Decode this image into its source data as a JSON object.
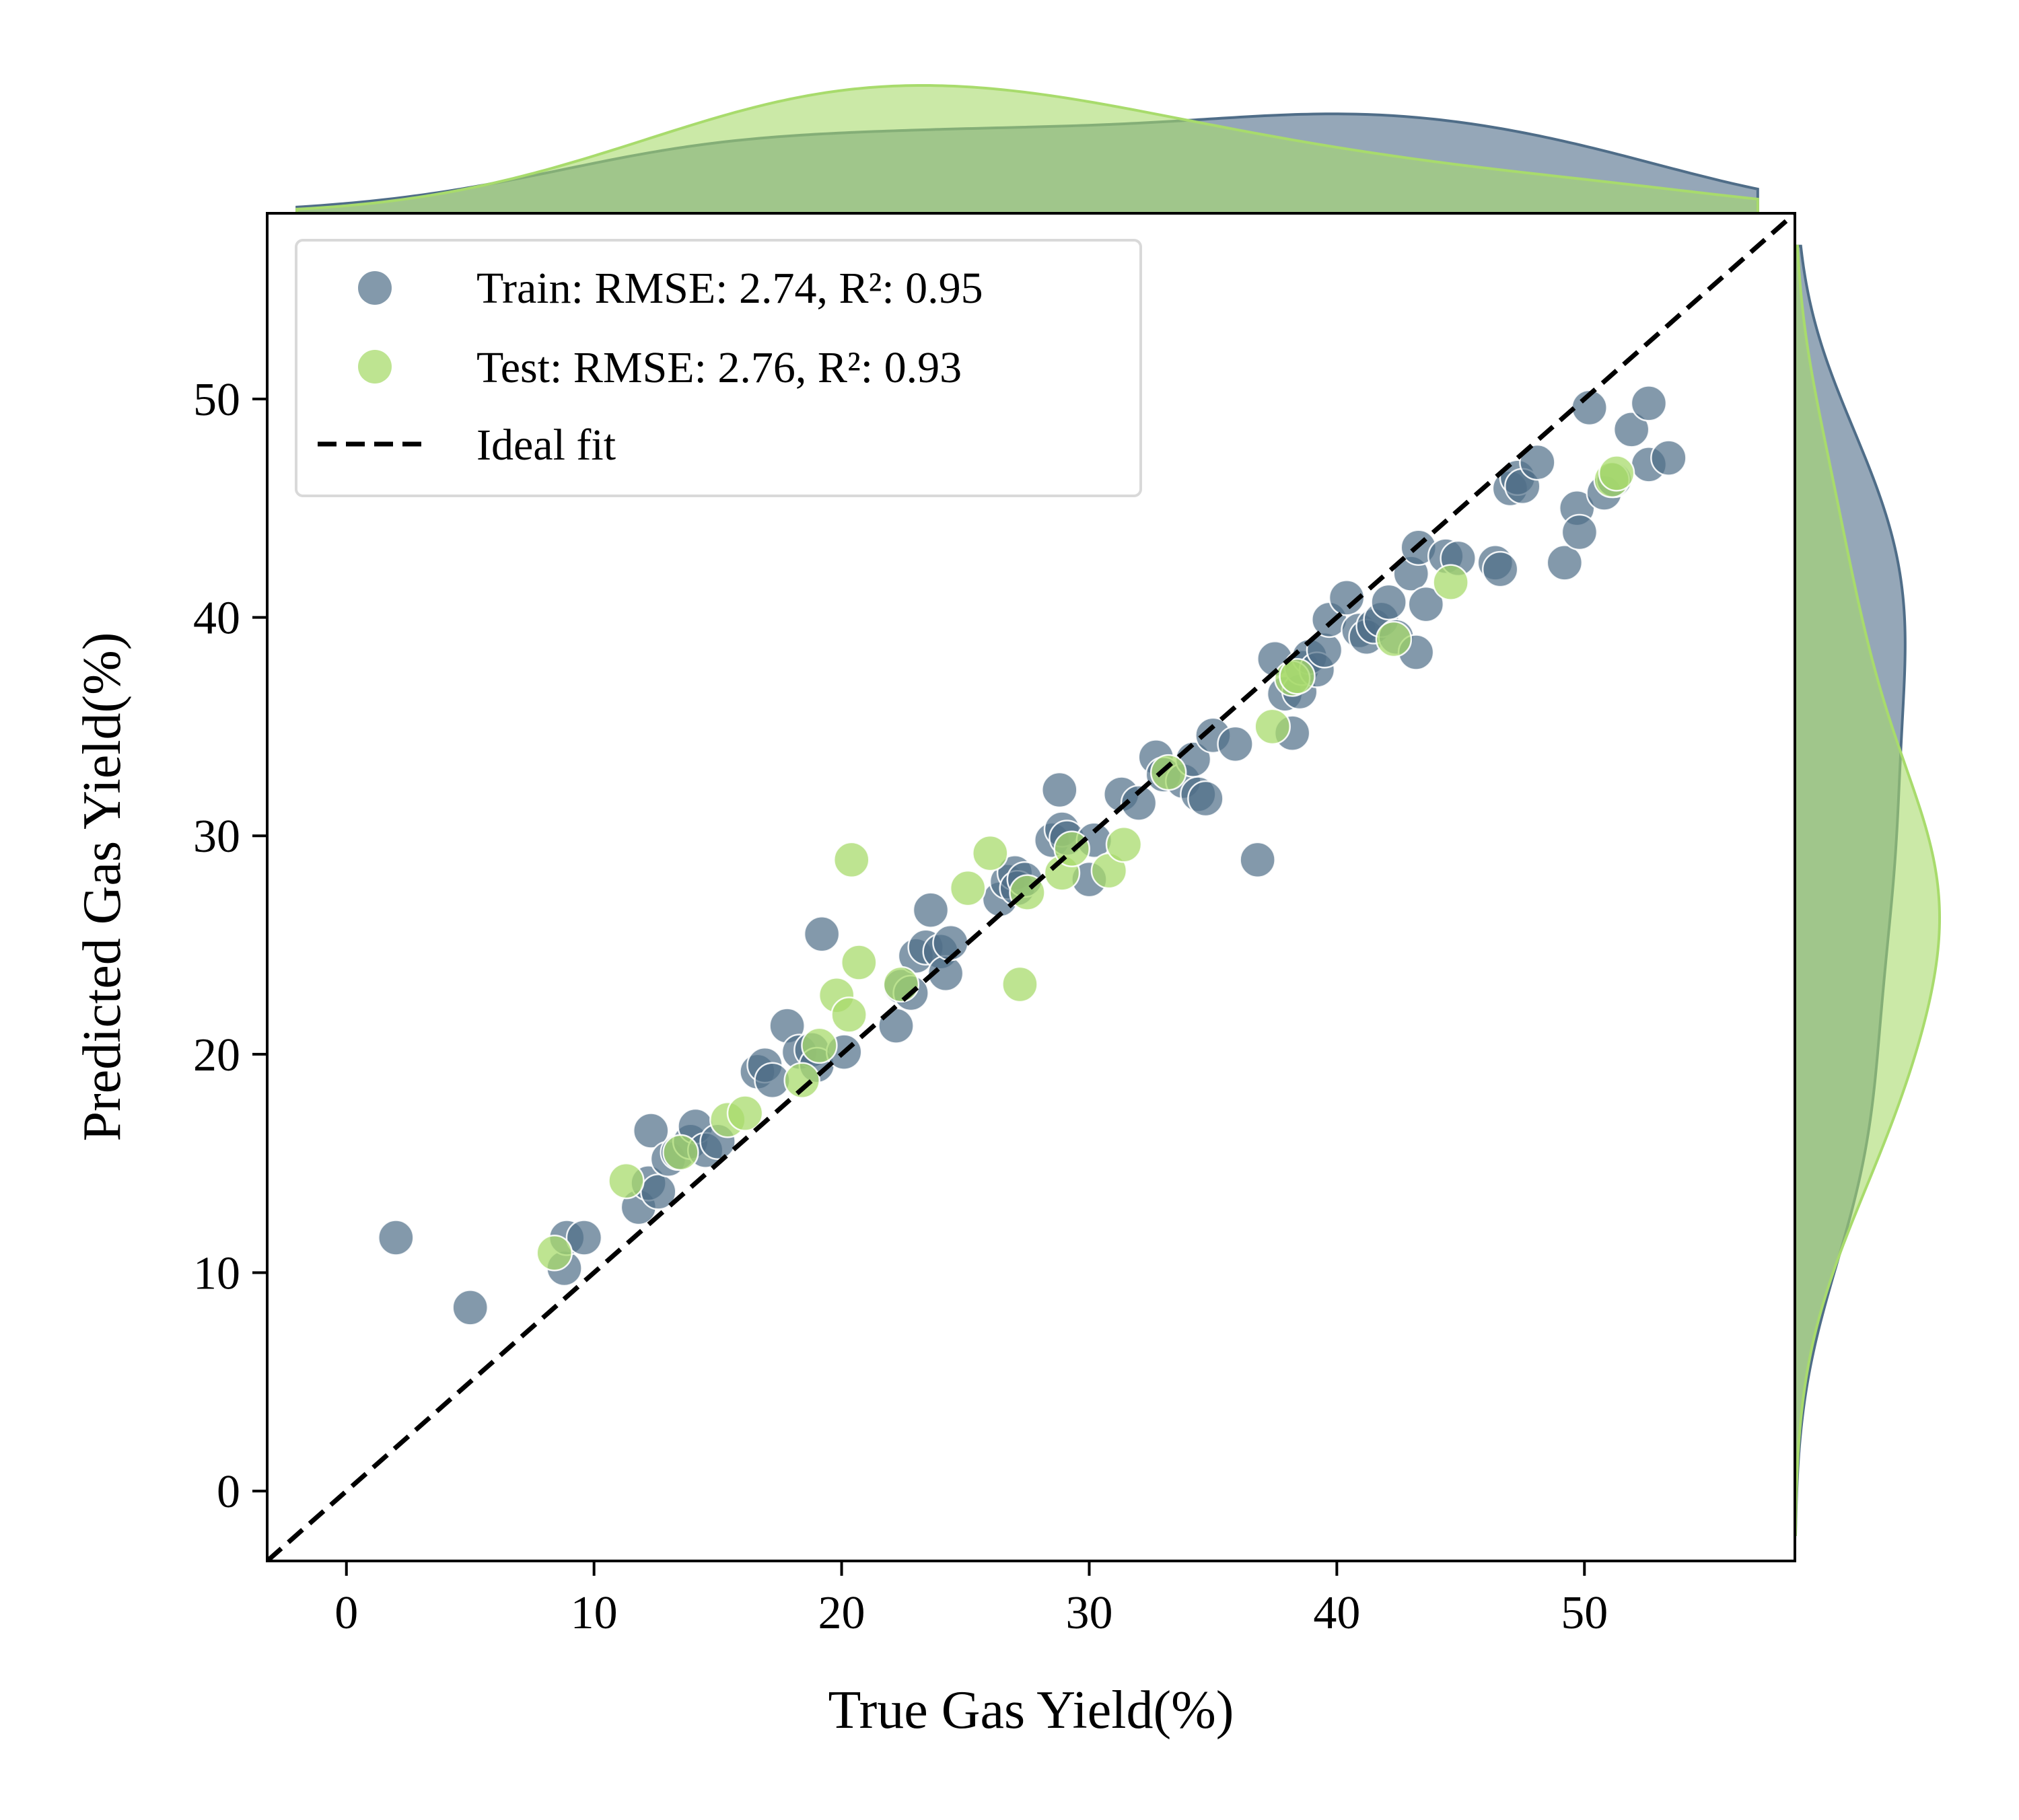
{
  "chart_data": {
    "type": "scatter",
    "title": "",
    "xlabel": "True Gas Yield(%)",
    "ylabel": "Predicted Gas Yield(%)",
    "xlim": [
      -3.2,
      58.5
    ],
    "ylim": [
      -3.2,
      58.5
    ],
    "xticks": [
      0,
      10,
      20,
      30,
      40,
      50
    ],
    "yticks": [
      0,
      10,
      20,
      30,
      40,
      50
    ],
    "grid": false,
    "legend_position": "top-left",
    "marginal_distributions": "kde",
    "series": [
      {
        "name": "Train: RMSE: 2.74, R²: 0.95",
        "color": "#4f6d88",
        "points": [
          [
            2.0,
            11.6
          ],
          [
            5.0,
            8.4
          ],
          [
            8.8,
            10.2
          ],
          [
            8.9,
            11.6
          ],
          [
            9.6,
            11.6
          ],
          [
            11.8,
            13.0
          ],
          [
            12.2,
            14.1
          ],
          [
            12.3,
            16.5
          ],
          [
            12.6,
            13.7
          ],
          [
            13.0,
            15.2
          ],
          [
            13.4,
            15.5
          ],
          [
            13.9,
            16.0
          ],
          [
            14.1,
            16.7
          ],
          [
            14.5,
            15.6
          ],
          [
            15.0,
            16.0
          ],
          [
            16.6,
            19.2
          ],
          [
            16.9,
            19.5
          ],
          [
            17.2,
            18.8
          ],
          [
            17.8,
            21.3
          ],
          [
            18.3,
            20.1
          ],
          [
            18.8,
            20.2
          ],
          [
            19.0,
            19.5
          ],
          [
            19.2,
            25.5
          ],
          [
            20.1,
            20.1
          ],
          [
            22.2,
            21.3
          ],
          [
            22.4,
            23.1
          ],
          [
            22.8,
            22.8
          ],
          [
            23.0,
            24.5
          ],
          [
            23.4,
            24.9
          ],
          [
            23.6,
            26.6
          ],
          [
            24.0,
            24.7
          ],
          [
            24.2,
            23.7
          ],
          [
            24.4,
            25.1
          ],
          [
            26.4,
            27.1
          ],
          [
            26.7,
            27.9
          ],
          [
            27.0,
            28.3
          ],
          [
            27.1,
            27.6
          ],
          [
            27.4,
            28.0
          ],
          [
            28.5,
            29.8
          ],
          [
            28.8,
            32.1
          ],
          [
            28.9,
            30.3
          ],
          [
            29.1,
            29.9
          ],
          [
            30.0,
            28.0
          ],
          [
            30.2,
            29.8
          ],
          [
            31.3,
            31.9
          ],
          [
            32.0,
            31.5
          ],
          [
            32.7,
            33.6
          ],
          [
            33.0,
            32.8
          ],
          [
            33.8,
            32.5
          ],
          [
            34.2,
            33.5
          ],
          [
            34.4,
            31.9
          ],
          [
            34.7,
            31.7
          ],
          [
            35.0,
            34.6
          ],
          [
            35.9,
            34.2
          ],
          [
            36.8,
            28.9
          ],
          [
            37.5,
            38.1
          ],
          [
            37.9,
            36.5
          ],
          [
            38.2,
            34.7
          ],
          [
            38.5,
            36.6
          ],
          [
            38.6,
            37.7
          ],
          [
            38.9,
            38.2
          ],
          [
            39.2,
            37.6
          ],
          [
            39.5,
            38.5
          ],
          [
            39.7,
            39.9
          ],
          [
            40.4,
            40.9
          ],
          [
            40.9,
            39.4
          ],
          [
            41.2,
            39.1
          ],
          [
            41.5,
            39.6
          ],
          [
            41.8,
            39.9
          ],
          [
            42.1,
            40.7
          ],
          [
            42.4,
            39.1
          ],
          [
            43.0,
            42.0
          ],
          [
            43.2,
            38.4
          ],
          [
            43.3,
            43.2
          ],
          [
            43.6,
            40.6
          ],
          [
            44.4,
            42.8
          ],
          [
            44.9,
            42.7
          ],
          [
            46.4,
            42.5
          ],
          [
            46.6,
            42.2
          ],
          [
            47.0,
            45.9
          ],
          [
            47.3,
            46.4
          ],
          [
            47.5,
            46.0
          ],
          [
            48.1,
            47.1
          ],
          [
            49.2,
            42.5
          ],
          [
            49.7,
            45.0
          ],
          [
            49.8,
            43.9
          ],
          [
            50.2,
            49.6
          ],
          [
            50.8,
            45.7
          ],
          [
            51.2,
            46.3
          ],
          [
            51.9,
            48.6
          ],
          [
            52.6,
            49.8
          ],
          [
            52.6,
            47.0
          ],
          [
            53.4,
            47.3
          ]
        ]
      },
      {
        "name": "Test: RMSE: 2.76, R²: 0.93",
        "color": "#a8db6c",
        "points": [
          [
            8.4,
            10.9
          ],
          [
            11.3,
            14.2
          ],
          [
            13.5,
            15.5
          ],
          [
            15.4,
            17.0
          ],
          [
            16.1,
            17.3
          ],
          [
            18.4,
            18.8
          ],
          [
            19.1,
            20.4
          ],
          [
            19.8,
            22.7
          ],
          [
            20.3,
            21.8
          ],
          [
            20.4,
            28.9
          ],
          [
            20.7,
            24.2
          ],
          [
            22.4,
            23.2
          ],
          [
            25.1,
            27.6
          ],
          [
            26.0,
            29.2
          ],
          [
            27.2,
            23.2
          ],
          [
            27.5,
            27.4
          ],
          [
            28.9,
            28.3
          ],
          [
            29.3,
            29.4
          ],
          [
            30.8,
            28.4
          ],
          [
            31.4,
            29.6
          ],
          [
            33.2,
            32.9
          ],
          [
            37.4,
            35.0
          ],
          [
            38.2,
            37.2
          ],
          [
            38.4,
            37.3
          ],
          [
            42.3,
            39.0
          ],
          [
            44.6,
            41.6
          ],
          [
            51.1,
            46.3
          ],
          [
            51.3,
            46.6
          ]
        ]
      },
      {
        "name": "Ideal fit",
        "color": "#000000",
        "style": "dashed",
        "points": [
          [
            -3.2,
            -3.2
          ],
          [
            58.5,
            58.5
          ]
        ]
      }
    ]
  }
}
